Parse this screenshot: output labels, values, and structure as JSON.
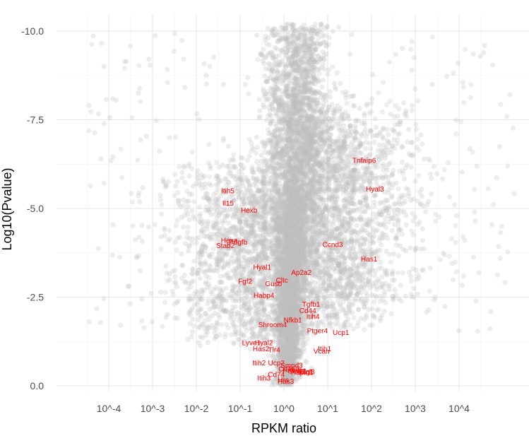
{
  "chart_data": {
    "type": "scatter",
    "title": "",
    "xlabel": "RPKM ratio",
    "ylabel": "Log10(Pvalue)",
    "x_scale": "log10",
    "x_ticks": [
      {
        "value": 0.0001,
        "label": "10^-4"
      },
      {
        "value": 0.001,
        "label": "10^-3"
      },
      {
        "value": 0.01,
        "label": "10^-2"
      },
      {
        "value": 0.1,
        "label": "10^-1"
      },
      {
        "value": 1,
        "label": "10^0"
      },
      {
        "value": 10,
        "label": "10^1"
      },
      {
        "value": 100,
        "label": "10^2"
      },
      {
        "value": 1000,
        "label": "10^3"
      },
      {
        "value": 10000,
        "label": "10^4"
      }
    ],
    "y_ticks": [
      {
        "value": 0,
        "label": "0.0"
      },
      {
        "value": -2.5,
        "label": "-2.5"
      },
      {
        "value": -5,
        "label": "-5.0"
      },
      {
        "value": -7.5,
        "label": "-7.5"
      },
      {
        "value": -10,
        "label": "-10.0"
      }
    ],
    "xlim": [
      1.25e-05,
      180000
    ],
    "ylim": [
      0.1,
      -10.5
    ],
    "y_reversed": true,
    "grid": true,
    "legend": "none",
    "point_color": "#bebebe",
    "label_color": "#ff0000",
    "background_points": {
      "count": 9000,
      "note_shape": "volcano"
    },
    "highlighted_genes": [
      {
        "gene": "Tnfaip6",
        "x": 68,
        "y": -6.35
      },
      {
        "gene": "Hyal3",
        "x": 120,
        "y": -5.55
      },
      {
        "gene": "Itih5",
        "x": 0.052,
        "y": -5.5
      },
      {
        "gene": "Il15",
        "x": 0.053,
        "y": -5.15
      },
      {
        "gene": "Hexb",
        "x": 0.16,
        "y": -4.95
      },
      {
        "gene": "Hexa",
        "x": 0.056,
        "y": -4.1
      },
      {
        "gene": "Pdgfb",
        "x": 0.09,
        "y": -4.05
      },
      {
        "gene": "Stab2",
        "x": 0.046,
        "y": -3.95
      },
      {
        "gene": "Ccnd3",
        "x": 13,
        "y": -3.98
      },
      {
        "gene": "Has1",
        "x": 88,
        "y": -3.58
      },
      {
        "gene": "Hyal1",
        "x": 0.32,
        "y": -3.35
      },
      {
        "gene": "Ap2a2",
        "x": 2.5,
        "y": -3.2
      },
      {
        "gene": "Fgf2",
        "x": 0.13,
        "y": -2.95
      },
      {
        "gene": "Cltc",
        "x": 0.9,
        "y": -2.98
      },
      {
        "gene": "Gusb",
        "x": 0.58,
        "y": -2.88
      },
      {
        "gene": "Habp4",
        "x": 0.35,
        "y": -2.55
      },
      {
        "gene": "Tgfb1",
        "x": 4.2,
        "y": -2.3
      },
      {
        "gene": "Cd44",
        "x": 3.5,
        "y": -2.12
      },
      {
        "gene": "Itih4",
        "x": 4.6,
        "y": -1.95
      },
      {
        "gene": "Nfkb1",
        "x": 1.6,
        "y": -1.85
      },
      {
        "gene": "Shroom4",
        "x": 0.55,
        "y": -1.72
      },
      {
        "gene": "Ptger4",
        "x": 5.8,
        "y": -1.55
      },
      {
        "gene": "Ucp1",
        "x": 20,
        "y": -1.5
      },
      {
        "gene": "Lyve1",
        "x": 0.18,
        "y": -1.22
      },
      {
        "gene": "Hyal2",
        "x": 0.35,
        "y": -1.22
      },
      {
        "gene": "Has2",
        "x": 0.3,
        "y": -1.05
      },
      {
        "gene": "Tlr4",
        "x": 0.6,
        "y": -1.02
      },
      {
        "gene": "Itih1",
        "x": 8.5,
        "y": -1.05
      },
      {
        "gene": "Vcan",
        "x": 7.2,
        "y": -0.98
      },
      {
        "gene": "Itih2",
        "x": 0.27,
        "y": -0.65
      },
      {
        "gene": "Ucp2",
        "x": 0.67,
        "y": -0.65
      },
      {
        "gene": "Smpd3",
        "x": 1.5,
        "y": -0.58
      },
      {
        "gene": "Cd163",
        "x": 1.3,
        "y": -0.48
      },
      {
        "gene": "Hmmr",
        "x": 1.55,
        "y": -0.45
      },
      {
        "gene": "Stab1",
        "x": 2.0,
        "y": -0.42
      },
      {
        "gene": "Dlg1",
        "x": 3.3,
        "y": -0.4
      },
      {
        "gene": "Hapln1",
        "x": 2.6,
        "y": -0.38
      },
      {
        "gene": "Ccl3",
        "x": 3.5,
        "y": -0.4
      },
      {
        "gene": "Cd74",
        "x": 0.67,
        "y": -0.32
      },
      {
        "gene": "Itih3",
        "x": 0.35,
        "y": -0.22
      },
      {
        "gene": "Hrs",
        "x": 0.97,
        "y": -0.17
      },
      {
        "gene": "Has3",
        "x": 1.1,
        "y": -0.13
      }
    ]
  }
}
